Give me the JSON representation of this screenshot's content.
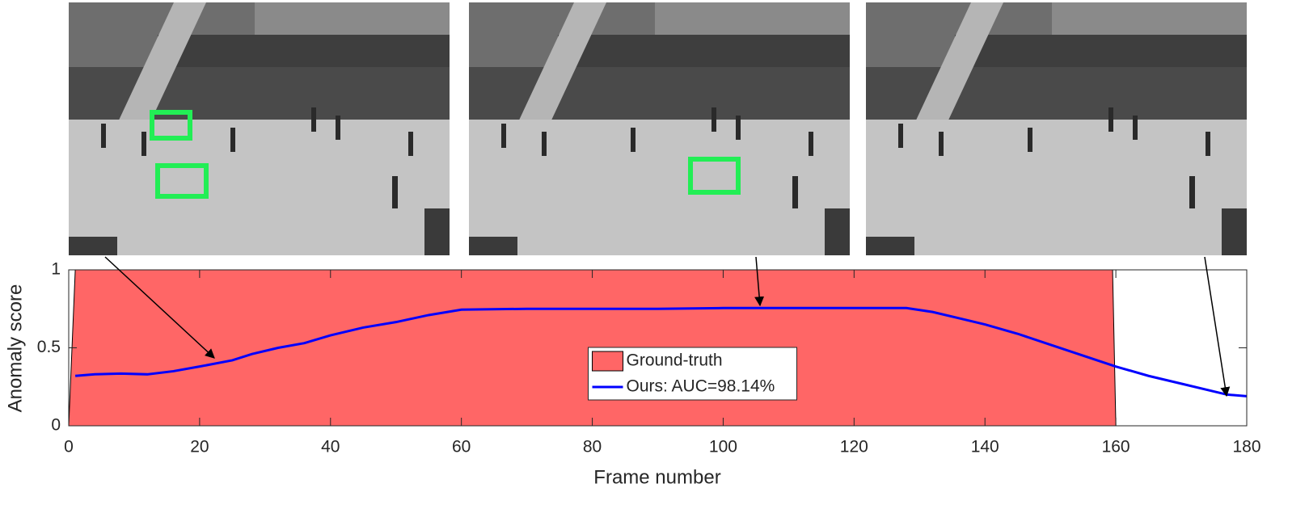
{
  "chart_data": {
    "type": "area-line",
    "x_label": "Frame number",
    "y_label": "Anomaly score",
    "xlim": [
      0,
      180
    ],
    "xticks": [
      0,
      20,
      40,
      60,
      80,
      100,
      120,
      140,
      160,
      180
    ],
    "ylim": [
      0,
      1
    ],
    "yticks": [
      0,
      0.5,
      1
    ],
    "legend": "center",
    "series": [
      {
        "name": "Ground-truth",
        "kind": "area",
        "color": "#ff6666",
        "x": [
          0,
          1,
          159.5,
          160
        ],
        "values": [
          0,
          1,
          1,
          0
        ]
      },
      {
        "name": "Ours: AUC=98.14%",
        "kind": "line",
        "color": "#0000ff",
        "x": [
          1,
          4,
          8,
          12,
          16,
          20,
          25,
          28,
          32,
          36,
          40,
          45,
          50,
          55,
          60,
          70,
          80,
          90,
          100,
          110,
          120,
          128,
          132,
          136,
          140,
          145,
          150,
          155,
          160,
          165,
          170,
          175,
          177,
          180
        ],
        "values": [
          0.32,
          0.33,
          0.335,
          0.33,
          0.35,
          0.38,
          0.42,
          0.46,
          0.5,
          0.53,
          0.58,
          0.63,
          0.665,
          0.71,
          0.745,
          0.75,
          0.75,
          0.75,
          0.755,
          0.755,
          0.755,
          0.755,
          0.73,
          0.69,
          0.65,
          0.59,
          0.52,
          0.45,
          0.38,
          0.32,
          0.27,
          0.22,
          0.2,
          0.19
        ]
      }
    ]
  }
}
